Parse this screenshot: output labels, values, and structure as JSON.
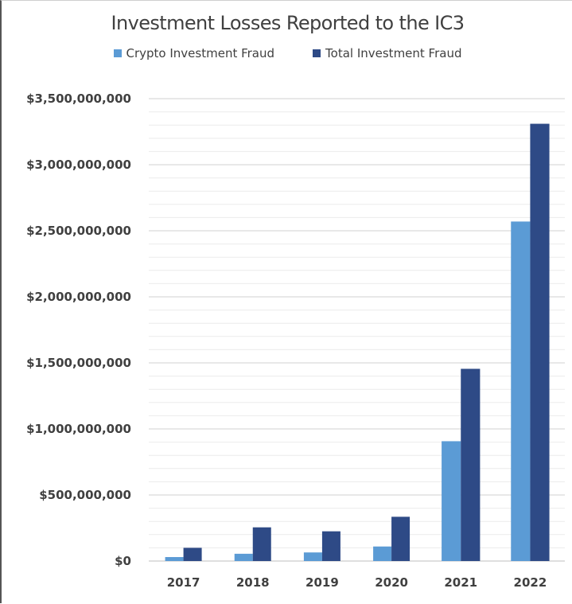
{
  "chart_data": {
    "type": "bar",
    "title": "Investment Losses Reported to the IC3",
    "categories": [
      "2017",
      "2018",
      "2019",
      "2020",
      "2021",
      "2022"
    ],
    "series": [
      {
        "name": "Crypto Investment Fraud",
        "color": "#5b9bd5",
        "values": [
          30000000,
          55000000,
          65000000,
          110000000,
          907000000,
          2570000000
        ]
      },
      {
        "name": "Total Investment Fraud",
        "color": "#2e4a86",
        "values": [
          100000000,
          255000000,
          225000000,
          335000000,
          1455000000,
          3310000000
        ]
      }
    ],
    "ylim": [
      0,
      3500000000
    ],
    "yticks": [
      0,
      500000000,
      1000000000,
      1500000000,
      2000000000,
      2500000000,
      3000000000,
      3500000000
    ],
    "ytick_labels": [
      "$0",
      "$500,000,000",
      "$1,000,000,000",
      "$1,500,000,000",
      "$2,000,000,000",
      "$2,500,000,000",
      "$3,000,000,000",
      "$3,500,000,000"
    ],
    "grid": true,
    "legend": "top"
  }
}
